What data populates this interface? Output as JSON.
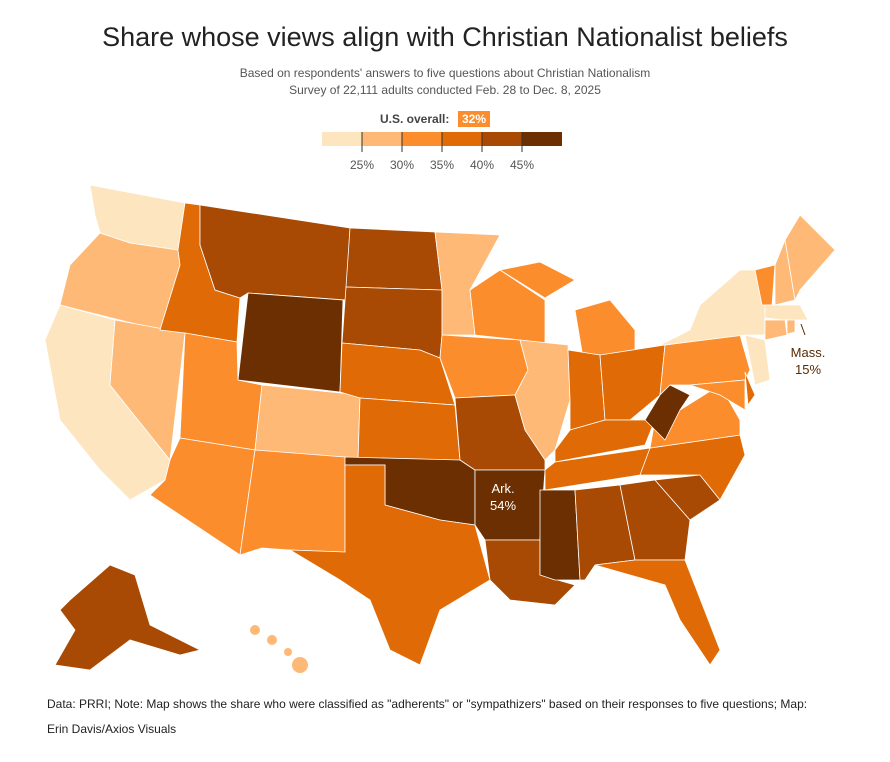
{
  "title": "Share whose views align with Christian Nationalist beliefs",
  "subtitle1": "Based on respondents' answers to five questions about Christian Nationalism",
  "subtitle2": "Survey of 22,111 adults conducted Feb. 28 to Dec. 8, 2025",
  "us_overall_label": "U.S. overall:",
  "us_overall_value": "32%",
  "legend": {
    "ticks": [
      "25%",
      "30%",
      "35%",
      "40%",
      "45%"
    ],
    "colors": [
      "#fde5c0",
      "#fdb975",
      "#fb8d2c",
      "#e06a05",
      "#a84a03",
      "#6b2f02"
    ]
  },
  "states": {
    "WA": 0,
    "OR": 1,
    "CA": 0,
    "NV": 1,
    "ID": 3,
    "MT": 4,
    "WY": 5,
    "UT": 2,
    "AZ": 2,
    "CO": 1,
    "NM": 2,
    "ND": 4,
    "SD": 4,
    "NE": 3,
    "KS": 3,
    "OK": 5,
    "TX": 3,
    "MN": 1,
    "IA": 2,
    "MO": 4,
    "AR": 5,
    "LA": 4,
    "MS": 5,
    "WI": 2,
    "IL": 1,
    "MI": 2,
    "IN": 3,
    "OH": 3,
    "KY": 3,
    "TN": 3,
    "AL": 4,
    "GA": 4,
    "FL": 3,
    "SC": 4,
    "NC": 3,
    "VA": 2,
    "WV": 5,
    "PA": 2,
    "NY": 0,
    "VT": 2,
    "NH": 1,
    "ME": 1,
    "MA": 0,
    "CT": 1,
    "RI": 1,
    "NJ": 0,
    "DE": 3,
    "MD": 2,
    "AK": 4,
    "HI": 1
  },
  "annotations": {
    "ark_name": "Ark.",
    "ark_value": "54%",
    "mass_name": "Mass.",
    "mass_value": "15%"
  },
  "footer1": "Data: PRRI; Note: Map shows the share who were classified as \"adherents\" or \"sympathizers\" based on their responses to five questions; Map:",
  "footer2": "Erin Davis/Axios Visuals"
}
